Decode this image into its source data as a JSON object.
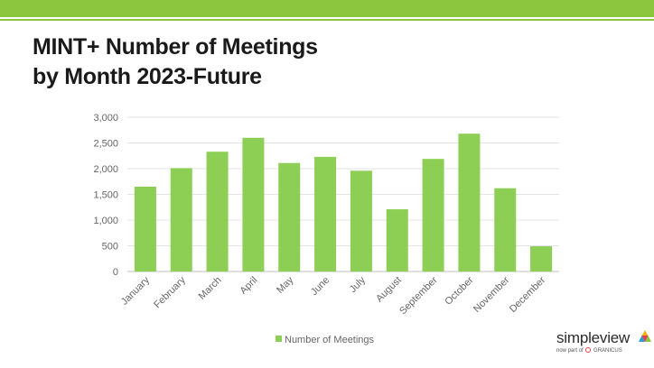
{
  "theme": {
    "accent": "#8cc63f",
    "bar_color": "#8dce54",
    "grid_color": "#e3e3e3",
    "tick_color": "#666666"
  },
  "header": {
    "title_line1": "MINT+ Number of Meetings",
    "title_line2": "by Month 2023-Future"
  },
  "chart_data": {
    "type": "bar",
    "title": "MINT+ Number of Meetings by Month 2023-Future",
    "categories": [
      "January",
      "February",
      "March",
      "April",
      "May",
      "June",
      "July",
      "August",
      "September",
      "October",
      "November",
      "December"
    ],
    "series": [
      {
        "name": "Number of Meetings",
        "values": [
          1650,
          2010,
          2330,
          2600,
          2110,
          2230,
          1960,
          1210,
          2190,
          2680,
          1620,
          490
        ]
      }
    ],
    "yticks": [
      "0",
      "500",
      "1,000",
      "1,500",
      "2,000",
      "2,500",
      "3,000"
    ],
    "ylim": [
      0,
      3000
    ],
    "grid": true,
    "legend_position": "bottom"
  },
  "logo": {
    "name": "simpleview",
    "sub_prefix": "now part of",
    "sub_brand": "GRANICUS",
    "icon": "simpleview-triangle-icon"
  }
}
